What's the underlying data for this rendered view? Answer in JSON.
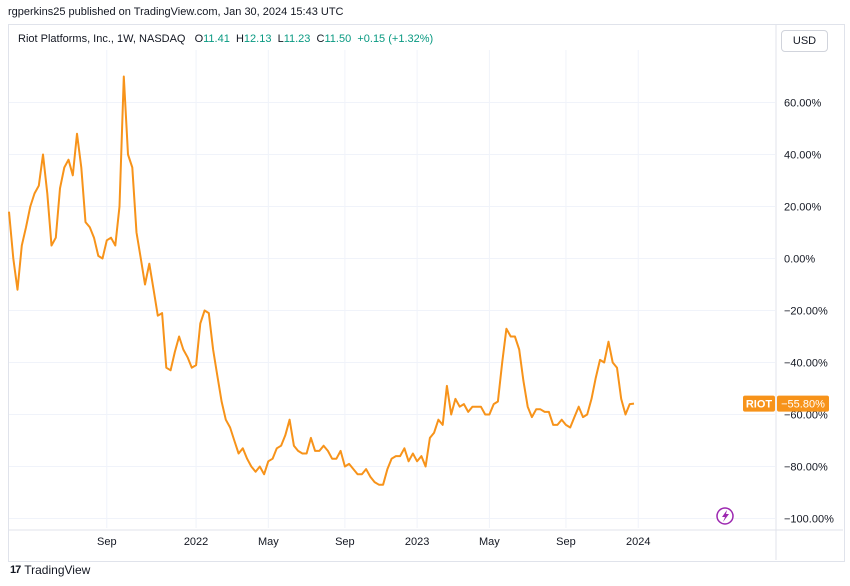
{
  "header": {
    "published": "rgperkins25 published on TradingView.com, Jan 30, 2024 15:43 UTC"
  },
  "legend": {
    "symbol": "Riot Platforms, Inc., 1W, NASDAQ",
    "o_label": "O",
    "o_val": "11.41",
    "h_label": "H",
    "h_val": "12.13",
    "l_label": "L",
    "l_val": "11.23",
    "c_label": "C",
    "c_val": "11.50",
    "change": "+0.15 (+1.32%)"
  },
  "currency_button": "USD",
  "footer": {
    "brand": "TradingView",
    "logo_glyph": "17"
  },
  "colors": {
    "line": "#f7931a",
    "grid": "#f0f3fa",
    "text": "#131722",
    "up": "#089981"
  },
  "chart_data": {
    "type": "line",
    "ticker_label": "RIOT",
    "last_value_label": "−55.80%",
    "y_unit": "%",
    "ylim": [
      -100,
      70
    ],
    "y_ticks": [
      60,
      40,
      20,
      0,
      -20,
      -40,
      -60,
      -80,
      -100
    ],
    "y_tick_labels": [
      "60.00%",
      "40.00%",
      "20.00%",
      "0.00%",
      "−20.00%",
      "−40.00%",
      "−60.00%",
      "−80.00%",
      "−100.00%"
    ],
    "x_ticks": [
      {
        "label": "Sep",
        "week": 23
      },
      {
        "label": "2022",
        "week": 44
      },
      {
        "label": "May",
        "week": 61
      },
      {
        "label": "Sep",
        "week": 79
      },
      {
        "label": "2023",
        "week": 96
      },
      {
        "label": "May",
        "week": 113
      },
      {
        "label": "Sep",
        "week": 131
      },
      {
        "label": "2024",
        "week": 148
      }
    ],
    "x_range_weeks": [
      0,
      168
    ],
    "series": [
      {
        "values": [
          18,
          0,
          -12,
          5,
          12,
          20,
          25,
          28,
          40,
          25,
          5,
          8,
          27,
          35,
          38,
          32,
          48,
          35,
          14,
          12,
          8,
          1,
          0,
          7,
          8,
          5,
          20,
          70,
          40,
          35,
          10,
          0,
          -10,
          -2,
          -12,
          -22,
          -21,
          -42,
          -43,
          -36,
          -30,
          -35,
          -38,
          -42,
          -41,
          -25,
          -20,
          -21,
          -35,
          -45,
          -55,
          -62,
          -65,
          -70,
          -75,
          -73,
          -77,
          -80,
          -82,
          -80,
          -83,
          -78,
          -77,
          -73,
          -72,
          -68,
          -62,
          -72,
          -74,
          -75,
          -75,
          -69,
          -74,
          -74,
          -72,
          -74,
          -77,
          -77,
          -74,
          -80,
          -79,
          -81,
          -83,
          -83,
          -81,
          -84,
          -86,
          -87,
          -87,
          -81,
          -77,
          -76,
          -76,
          -73,
          -78,
          -75,
          -78,
          -76,
          -80,
          -69,
          -67,
          -62,
          -64,
          -49,
          -60,
          -54,
          -57,
          -56,
          -59,
          -57,
          -57,
          -57,
          -60,
          -60,
          -56,
          -55,
          -40,
          -27,
          -30,
          -30,
          -35,
          -47,
          -57,
          -61,
          -58,
          -58,
          -59,
          -59,
          -64,
          -64,
          -62,
          -64,
          -65,
          -61,
          -57,
          -61,
          -60,
          -54,
          -46,
          -39,
          -40,
          -32,
          -40,
          -42,
          -54,
          -60,
          -56,
          -55.8
        ]
      }
    ]
  }
}
